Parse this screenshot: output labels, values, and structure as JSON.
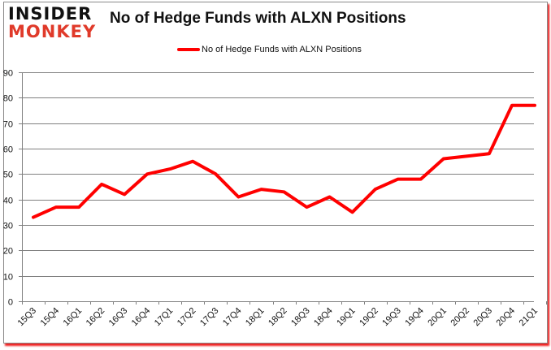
{
  "logo": {
    "line1": "INSIDER",
    "line2": "MONKEY"
  },
  "colors": {
    "line": "#ff0000",
    "grid": "#808080",
    "logo_red": "#e03a2a"
  },
  "chart_data": {
    "type": "line",
    "title": "No of Hedge Funds with ALXN Positions",
    "xlabel": "",
    "ylabel": "",
    "ylim": [
      0,
      90
    ],
    "yticks": [
      0,
      10,
      20,
      30,
      40,
      50,
      60,
      70,
      80,
      90
    ],
    "grid": true,
    "legend_position": "top",
    "categories": [
      "15Q3",
      "15Q4",
      "16Q1",
      "16Q2",
      "16Q3",
      "16Q4",
      "17Q1",
      "17Q2",
      "17Q3",
      "17Q4",
      "18Q1",
      "18Q2",
      "18Q3",
      "18Q4",
      "19Q1",
      "19Q2",
      "19Q3",
      "19Q4",
      "20Q1",
      "20Q2",
      "20Q3",
      "20Q4",
      "21Q1"
    ],
    "series": [
      {
        "name": "No of Hedge Funds with ALXN Positions",
        "values": [
          33,
          37,
          37,
          46,
          42,
          50,
          52,
          55,
          50,
          41,
          44,
          43,
          37,
          41,
          35,
          44,
          48,
          48,
          56,
          57,
          58,
          77,
          77
        ]
      }
    ]
  }
}
